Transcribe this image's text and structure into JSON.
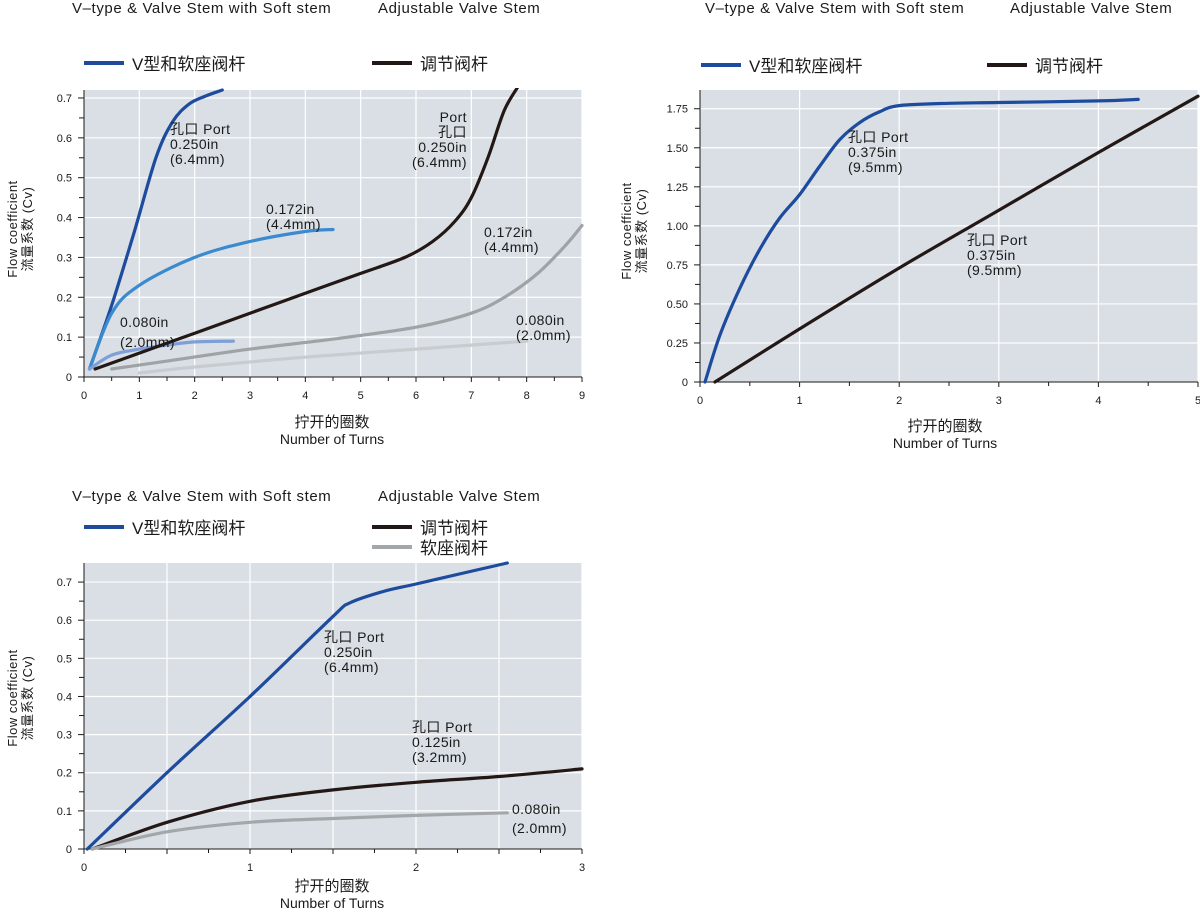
{
  "colors": {
    "plot_bg": "#d9dfe4",
    "grid": "#ffffff",
    "v_type": "#1d4b9e",
    "v_type_mid": "#3b8ad0",
    "v_type_small": "#7f9fd9",
    "adjustable": "#231815",
    "adjustable_mid": "#9fa3a6",
    "adjustable_small": "#c8ccd0",
    "soft_seat": "#a3a7aa"
  },
  "chart_data": [
    {
      "id": "c1",
      "type": "line",
      "header_left": "V–type & Valve Stem with Soft stem",
      "header_right": "Adjustable Valve Stem",
      "legend": [
        {
          "label": "V型和软座阀杆",
          "color": "#1d4b9e"
        },
        {
          "label": "调节阀杆",
          "color": "#231815"
        }
      ],
      "ylabel_en": "Flow coefficient",
      "ylabel_cn": "流量系数 (Cv)",
      "xlabel_cn": "拧开的圈数",
      "xlabel_en": "Number of Turns",
      "xlim": [
        0,
        9
      ],
      "ylim": [
        0,
        0.72
      ],
      "xticks": [
        0,
        1,
        2,
        3,
        4,
        5,
        6,
        7,
        8,
        9
      ],
      "xtick_labels": [
        "0",
        "1",
        "2",
        "3",
        "4",
        "5",
        "6",
        "7",
        "8",
        "9"
      ],
      "yticks": [
        0,
        0.1,
        0.2,
        0.3,
        0.4,
        0.5,
        0.6,
        0.7
      ],
      "ytick_labels": [
        "0",
        "0.1",
        "0.2",
        "0.3",
        "0.4",
        "0.5",
        "0.6",
        "0.7"
      ],
      "series": [
        {
          "name": "V-type 0.250in",
          "color": "#1d4b9e",
          "x": [
            0.1,
            0.5,
            0.9,
            1.3,
            1.6,
            1.9,
            2.2,
            2.5
          ],
          "y": [
            0.02,
            0.18,
            0.36,
            0.55,
            0.64,
            0.685,
            0.705,
            0.72
          ]
        },
        {
          "name": "V-type 0.172in",
          "color": "#3b8ad0",
          "x": [
            0.1,
            0.5,
            1.0,
            2.0,
            3.0,
            4.0,
            4.5
          ],
          "y": [
            0.02,
            0.16,
            0.23,
            0.3,
            0.34,
            0.365,
            0.37
          ]
        },
        {
          "name": "V-type 0.080in",
          "color": "#7f9fd9",
          "x": [
            0.1,
            0.5,
            1.0,
            1.5,
            2.0,
            2.7
          ],
          "y": [
            0.02,
            0.055,
            0.07,
            0.08,
            0.088,
            0.09
          ]
        },
        {
          "name": "Adjustable 0.250in",
          "color": "#231815",
          "x": [
            0.2,
            1.0,
            2.0,
            3.0,
            4.0,
            5.0,
            5.8,
            6.3,
            6.7,
            7.0,
            7.3,
            7.6,
            7.9
          ],
          "y": [
            0.02,
            0.06,
            0.11,
            0.16,
            0.21,
            0.26,
            0.3,
            0.34,
            0.39,
            0.45,
            0.55,
            0.67,
            0.74
          ]
        },
        {
          "name": "Adjustable 0.172in",
          "color": "#9fa3a6",
          "x": [
            0.5,
            1.5,
            3.0,
            4.5,
            6.0,
            7.0,
            7.6,
            8.2,
            8.7,
            9.0
          ],
          "y": [
            0.02,
            0.04,
            0.07,
            0.095,
            0.125,
            0.16,
            0.2,
            0.26,
            0.33,
            0.38
          ]
        },
        {
          "name": "Adjustable 0.080in",
          "color": "#c8ccd0",
          "x": [
            1.0,
            2.0,
            4.0,
            6.0,
            8.0
          ],
          "y": [
            0.01,
            0.025,
            0.05,
            0.07,
            0.09
          ]
        }
      ],
      "annotations": [
        {
          "text": "孔口 Port\n0.250in\n(6.4mm)"
        },
        {
          "text": "0.172in\n(4.4mm)"
        },
        {
          "text": "0.080in\n(2.0mm)"
        },
        {
          "text": "Port\n孔口\n0.250in\n(6.4mm)"
        },
        {
          "text": "0.172in\n(4.4mm)"
        },
        {
          "text": "0.080in\n(2.0mm)"
        }
      ]
    },
    {
      "id": "c2",
      "type": "line",
      "header_left": "V–type & Valve Stem with Soft stem",
      "header_right": "Adjustable Valve Stem",
      "legend": [
        {
          "label": "V型和软座阀杆",
          "color": "#1d4b9e"
        },
        {
          "label": "调节阀杆",
          "color": "#231815"
        }
      ],
      "ylabel_en": "Flow coefficient",
      "ylabel_cn": "流量系数 (Cv)",
      "xlabel_cn": "拧开的圈数",
      "xlabel_en": "Number of Turns",
      "xlim": [
        0,
        5
      ],
      "ylim": [
        0,
        1.87
      ],
      "xticks": [
        0,
        1,
        2,
        3,
        4,
        5
      ],
      "xtick_labels": [
        "0",
        "1",
        "2",
        "3",
        "4",
        "5"
      ],
      "yticks": [
        0,
        0.25,
        0.5,
        0.75,
        1.0,
        1.25,
        1.5,
        1.75
      ],
      "ytick_labels": [
        "0",
        "0.25",
        "0.50",
        "0.75",
        "1.00",
        "1.25",
        "1.50",
        "1.75"
      ],
      "series": [
        {
          "name": "V-type 0.375in",
          "color": "#1d4b9e",
          "x": [
            0.05,
            0.2,
            0.4,
            0.6,
            0.8,
            1.0,
            1.2,
            1.4,
            1.6,
            1.8,
            2.0,
            2.5,
            3.0,
            4.0,
            4.4
          ],
          "y": [
            0.0,
            0.3,
            0.6,
            0.85,
            1.05,
            1.2,
            1.38,
            1.55,
            1.66,
            1.73,
            1.77,
            1.785,
            1.79,
            1.8,
            1.81
          ]
        },
        {
          "name": "Adjustable 0.375in",
          "color": "#231815",
          "x": [
            0.15,
            1.0,
            2.0,
            3.0,
            4.0,
            5.0
          ],
          "y": [
            0.0,
            0.34,
            0.73,
            1.1,
            1.47,
            1.83
          ]
        }
      ],
      "annotations": [
        {
          "text": "孔口 Port\n0.375in\n(9.5mm)"
        },
        {
          "text": "孔口 Port\n0.375in\n(9.5mm)"
        }
      ]
    },
    {
      "id": "c3",
      "type": "line",
      "header_left": "V–type & Valve Stem with Soft stem",
      "header_right": "Adjustable Valve Stem",
      "legend": [
        {
          "label": "V型和软座阀杆",
          "color": "#1d4b9e"
        },
        {
          "label": "调节阀杆",
          "color": "#231815"
        },
        {
          "label": "软座阀杆",
          "color": "#a3a7aa"
        }
      ],
      "ylabel_en": "Flow coefficient",
      "ylabel_cn": "流量系数 (Cv)",
      "xlabel_cn": "拧开的圈数",
      "xlabel_en": "Number of Turns",
      "xlim": [
        0,
        3
      ],
      "ylim": [
        0,
        0.75
      ],
      "xticks": [
        0,
        0.5,
        1,
        1.5,
        2,
        2.5,
        3
      ],
      "xtick_labels": [
        "0",
        "",
        "1",
        "",
        "2",
        "",
        "3"
      ],
      "yticks": [
        0,
        0.1,
        0.2,
        0.3,
        0.4,
        0.5,
        0.6,
        0.7
      ],
      "ytick_labels": [
        "0",
        "0.1",
        "0.2",
        "0.3",
        "0.4",
        "0.5",
        "0.6",
        "0.7"
      ],
      "series": [
        {
          "name": "V-type 0.250in",
          "color": "#1d4b9e",
          "x": [
            0.02,
            0.5,
            1.0,
            1.5,
            1.6,
            1.8,
            2.0,
            2.3,
            2.55
          ],
          "y": [
            0.0,
            0.2,
            0.4,
            0.61,
            0.645,
            0.675,
            0.695,
            0.725,
            0.75
          ]
        },
        {
          "name": "Adjustable 0.125in",
          "color": "#231815",
          "x": [
            0.05,
            0.5,
            1.0,
            1.5,
            2.0,
            2.5,
            3.0
          ],
          "y": [
            0.0,
            0.07,
            0.125,
            0.155,
            0.175,
            0.19,
            0.21
          ]
        },
        {
          "name": "Soft seat 0.080in",
          "color": "#a3a7aa",
          "x": [
            0.05,
            0.5,
            1.0,
            1.5,
            2.0,
            2.55
          ],
          "y": [
            0.0,
            0.045,
            0.07,
            0.08,
            0.088,
            0.095
          ]
        }
      ],
      "annotations": [
        {
          "text": "孔口 Port\n0.250in\n(6.4mm)"
        },
        {
          "text": "孔口 Port\n0.125in\n(3.2mm)"
        },
        {
          "text": "0.080in\n(2.0mm)"
        }
      ]
    }
  ]
}
